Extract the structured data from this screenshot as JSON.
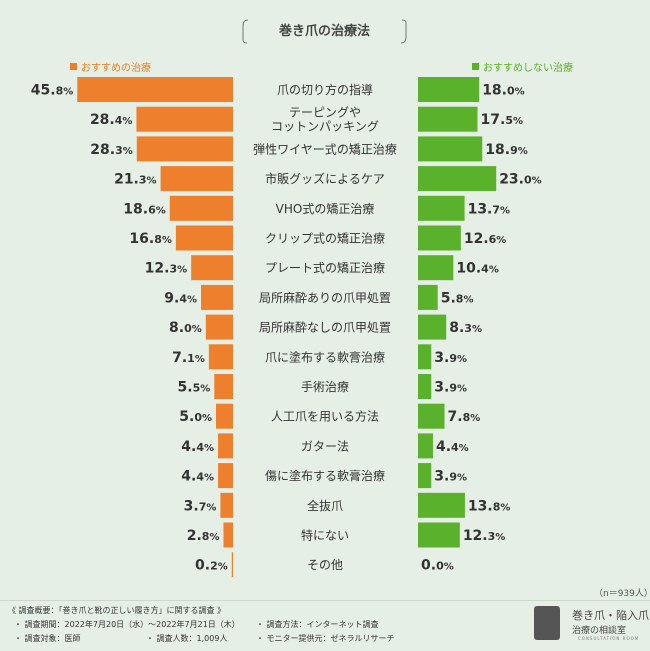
{
  "chart_data": {
    "type": "bar",
    "title": "巻き爪の治療法",
    "categories": [
      "爪の切り方の指導",
      "テーピングや\nコットンパッキング",
      "弾性ワイヤー式の矯正治療",
      "市販グッズによるケア",
      "VHO式の矯正治療",
      "クリップ式の矯正治療",
      "プレート式の矯正治療",
      "局所麻酔ありの爪甲処置",
      "局所麻酔なしの爪甲処置",
      "爪に塗布する軟膏治療",
      "手術治療",
      "人工爪を用いる方法",
      "ガター法",
      "傷に塗布する軟膏治療",
      "全抜爪",
      "特にない",
      "その他"
    ],
    "series": [
      {
        "name": "おすすめの治療",
        "color": "#ee7f2d",
        "values": [
          45.8,
          28.4,
          28.3,
          21.3,
          18.6,
          16.8,
          12.3,
          9.4,
          8.0,
          7.1,
          5.5,
          5.0,
          4.4,
          4.4,
          3.7,
          2.8,
          0.2
        ]
      },
      {
        "name": "おすすめしない治療",
        "color": "#5ab22c",
        "values": [
          18.0,
          17.5,
          18.9,
          23.0,
          13.7,
          12.6,
          10.4,
          5.8,
          8.3,
          3.9,
          3.9,
          7.8,
          4.4,
          3.9,
          13.8,
          12.3,
          0.0
        ]
      }
    ],
    "value_suffix": "%",
    "legend_position": "top",
    "xlim": [
      0,
      50
    ],
    "grid": false
  },
  "note": "（n＝939人）",
  "footer": {
    "summary": "《 調査概要：「巻き爪と靴の正しい履き方」に関する調査 》",
    "period": "・ 調査期間：2022年7月20日（水）～2022年7月21日（木）",
    "method": "・ 調査方法：インターネット調査",
    "target": "・ 調査対象：医師",
    "count": "・ 調査人数：1,009人",
    "provider": "・ モニター提供元：ゼネラルリサーチ"
  },
  "logo": {
    "line1": "巻き爪・陥入爪",
    "line2": "治療の相談室",
    "line3": "CONSULTATION ROOM"
  }
}
